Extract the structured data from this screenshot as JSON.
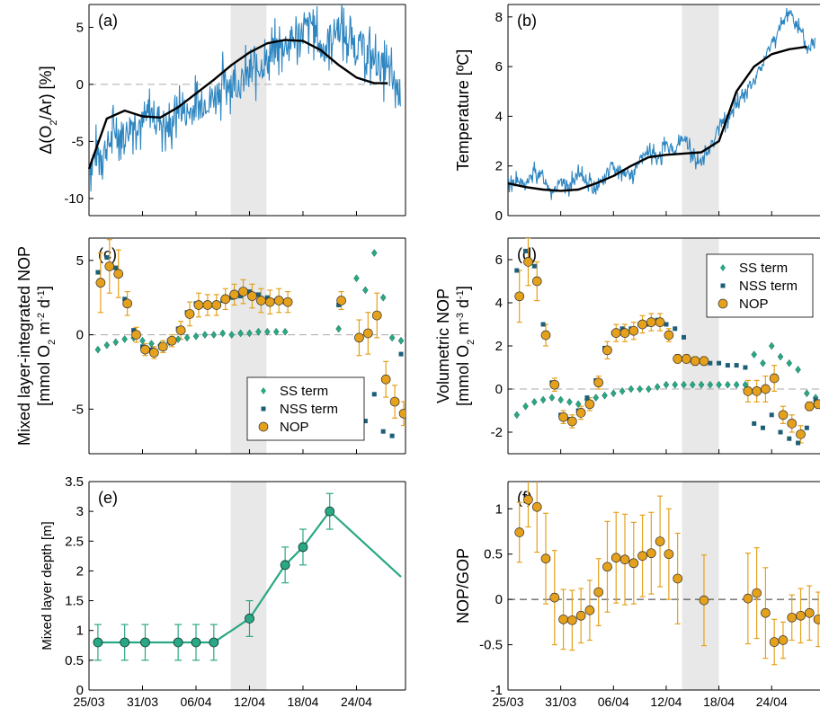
{
  "colors": {
    "blue": "#2e86c1",
    "orange": "#e5a11c",
    "green": "#2aa784",
    "darkteal": "#1d5f79",
    "shade": "#e8e8e8",
    "black": "#000000",
    "dash": "#aaaaaa"
  },
  "x_ticks": [
    "25/03",
    "31/03",
    "06/04",
    "12/04",
    "18/04",
    "24/04"
  ],
  "chart_data": [
    {
      "panel": "a",
      "label": "(a)",
      "type": "line",
      "ylabel_html": "Δ(O<tspan baseline-shift='sub' font-size='11'>2</tspan>/Ar) [%]",
      "ylim": [
        -11.5,
        7
      ],
      "yticks": [
        -10,
        -5,
        0,
        5
      ],
      "shade": [
        15.9,
        19.9
      ],
      "zero_line": true,
      "noisy_series": {
        "x": [
          0,
          1,
          2,
          3,
          4,
          5,
          6,
          7,
          8,
          9,
          10,
          11,
          12,
          13,
          14,
          15,
          16,
          17,
          18,
          19,
          20,
          21,
          22,
          23,
          24,
          25,
          26,
          27,
          28,
          29,
          30,
          31,
          32,
          33,
          34,
          35
        ],
        "y": [
          -7,
          -6,
          -5.5,
          -4,
          -4.5,
          -3,
          -3.5,
          -2.5,
          -3,
          -4,
          -2,
          -2.5,
          -2,
          -1.5,
          -1,
          0,
          0.5,
          0,
          1,
          1.5,
          2,
          3,
          3.5,
          4,
          4.5,
          5.5,
          3,
          4,
          5,
          4,
          3.5,
          3,
          2,
          1.5,
          0.5,
          -1
        ]
      },
      "smooth_series": {
        "x": [
          0,
          2,
          4,
          6,
          8,
          10,
          12,
          14,
          16,
          18,
          20,
          22,
          24,
          26,
          28,
          30,
          32,
          33.5
        ],
        "y": [
          -7.4,
          -3,
          -2.3,
          -2.8,
          -2.9,
          -2,
          -0.8,
          0.4,
          1.7,
          2.8,
          3.6,
          3.9,
          3.8,
          3.0,
          1.7,
          0.6,
          0.1,
          0.1
        ]
      }
    },
    {
      "panel": "b",
      "label": "(b)",
      "type": "line",
      "ylabel_html": "Temperature [ºC]",
      "ylim": [
        0,
        8.5
      ],
      "yticks": [
        0,
        2,
        4,
        6,
        8
      ],
      "shade": [
        19.8,
        24
      ],
      "zero_line": false,
      "noisy_series": {
        "x": [
          0,
          1,
          2,
          3,
          4,
          5,
          6,
          7,
          8,
          9,
          10,
          11,
          12,
          13,
          14,
          15,
          16,
          17,
          18,
          19,
          20,
          21,
          22,
          23,
          24,
          25,
          26,
          27,
          28,
          29,
          30,
          31,
          32,
          33,
          34,
          35
        ],
        "y": [
          1.3,
          1.4,
          1.2,
          1.8,
          1.5,
          1.0,
          1.3,
          1.2,
          1.6,
          1.4,
          1.2,
          1.5,
          2.0,
          1.8,
          1.6,
          2.2,
          2.6,
          2.3,
          2.8,
          2.6,
          3.2,
          2.4,
          2.1,
          2.8,
          3.6,
          3.9,
          4.5,
          5.0,
          5.4,
          6.1,
          7.0,
          7.5,
          8.3,
          7.6,
          6.7,
          6.9
        ]
      },
      "smooth_series": {
        "x": [
          0,
          2,
          4,
          6,
          8,
          10,
          12,
          14,
          16,
          18,
          20,
          22,
          24,
          26,
          28,
          30,
          32,
          34
        ],
        "y": [
          1.3,
          1.15,
          1.05,
          1.0,
          1.05,
          1.3,
          1.6,
          2.0,
          2.35,
          2.45,
          2.5,
          2.55,
          3.0,
          5.0,
          6.0,
          6.5,
          6.7,
          6.8
        ]
      }
    },
    {
      "panel": "c",
      "label": "(c)",
      "type": "scatter",
      "ylabel_line1": "Mixed layer-integrated NOP",
      "ylabel_line2_html": "[mmol O<tspan baseline-shift='sub' font-size='11'>2</tspan> m<tspan baseline-shift='super' font-size='11'>-2</tspan> d<tspan baseline-shift='super' font-size='11'>-1</tspan>]",
      "ylim": [
        -8,
        6.5
      ],
      "yticks": [
        -5,
        0,
        5
      ],
      "shade": [
        15.9,
        19.9
      ],
      "zero_line": true,
      "legend_pos": "bottom-right",
      "legend": [
        "SS term",
        "NSS term",
        "NOP"
      ],
      "ss": {
        "x": [
          1,
          2,
          3,
          4,
          5,
          6,
          7,
          8,
          9,
          10,
          11,
          12,
          13,
          14,
          15,
          16,
          17,
          18,
          19,
          20,
          21,
          22,
          28,
          30,
          31,
          32,
          33,
          34,
          35
        ],
        "y": [
          -1,
          -0.7,
          -0.5,
          -0.3,
          -0.2,
          -0.4,
          -0.6,
          -0.7,
          -0.5,
          -0.3,
          -0.2,
          -0.1,
          0,
          0,
          0.1,
          0,
          0.1,
          0.1,
          0.2,
          0.2,
          0.2,
          0.2,
          0.4,
          3.8,
          3.0,
          5.5,
          2.5,
          -0.2,
          -0.4
        ]
      },
      "nss": {
        "x": [
          1,
          2,
          3,
          4,
          5,
          6,
          7,
          8,
          9,
          10,
          11,
          12,
          13,
          14,
          15,
          16,
          17,
          18,
          19,
          20,
          21,
          22,
          28,
          30,
          31,
          32,
          33,
          34,
          35
        ],
        "y": [
          4.2,
          5.2,
          4.5,
          2.4,
          0.3,
          -0.8,
          -1.0,
          -0.8,
          -0.4,
          0.4,
          1.5,
          2.1,
          2.0,
          2.0,
          2.3,
          2.5,
          2.6,
          2.9,
          2.7,
          2.5,
          2.3,
          2.2,
          2.0,
          -4.6,
          -5.8,
          -4.0,
          -6.5,
          -6.8,
          -1.3
        ]
      },
      "nop": {
        "x": [
          1.3,
          2.3,
          3.3,
          4.3,
          5.3,
          6.3,
          7.3,
          8.3,
          9.3,
          10.3,
          11.3,
          12.3,
          13.3,
          14.3,
          15.3,
          16.3,
          17.3,
          18.3,
          19.3,
          20.3,
          21.3,
          22.3,
          28.3,
          30.3,
          31.3,
          32.3,
          33.3,
          34.3,
          35.3,
          36.3
        ],
        "y": [
          3.5,
          4.6,
          4.1,
          2.1,
          0,
          -1.0,
          -1.2,
          -0.8,
          -0.4,
          0.3,
          1.4,
          2.0,
          2.0,
          2.0,
          2.4,
          2.7,
          2.9,
          2.6,
          2.3,
          2.2,
          2.3,
          2.2,
          2.3,
          -0.2,
          0.1,
          1.3,
          -3.0,
          -4.5,
          -5.3,
          -1.5
        ],
        "err": [
          2.0,
          1.8,
          1.6,
          0.8,
          0.5,
          0.4,
          0.4,
          0.4,
          0.4,
          0.6,
          0.8,
          0.8,
          0.7,
          0.7,
          0.7,
          0.7,
          0.8,
          0.8,
          0.8,
          0.8,
          0.8,
          0.7,
          0.6,
          1.2,
          1.4,
          1.5,
          1.2,
          1.1,
          0.8,
          0.3
        ]
      }
    },
    {
      "panel": "d",
      "label": "(d)",
      "type": "scatter",
      "ylabel_line1": "Volumetric NOP",
      "ylabel_line2_html": "[mmol O<tspan baseline-shift='sub' font-size='11'>2</tspan> m<tspan baseline-shift='super' font-size='11'>-3</tspan> d<tspan baseline-shift='super' font-size='11'>-1</tspan>]",
      "ylim": [
        -3,
        7
      ],
      "yticks": [
        -2,
        0,
        2,
        4,
        6
      ],
      "shade": [
        19.8,
        24
      ],
      "zero_line": true,
      "legend_pos": "top-right",
      "legend": [
        "SS term",
        "NSS term",
        "NOP"
      ],
      "ss": {
        "x": [
          1,
          2,
          3,
          4,
          5,
          6,
          7,
          8,
          9,
          10,
          11,
          12,
          13,
          14,
          15,
          16,
          17,
          18,
          19,
          20,
          21,
          22,
          23,
          24,
          25,
          26,
          27,
          28,
          29,
          30,
          31,
          32,
          33,
          34,
          35
        ],
        "y": [
          -1.2,
          -0.8,
          -0.6,
          -0.5,
          -0.4,
          -0.5,
          -0.6,
          -0.7,
          -0.5,
          -0.4,
          -0.3,
          -0.2,
          -0.1,
          0,
          0,
          0,
          0.1,
          0.2,
          0.2,
          0.2,
          0.2,
          0.2,
          0.2,
          0.2,
          0.2,
          0.2,
          0.2,
          1.6,
          1.2,
          2.0,
          1.5,
          1.2,
          0.9,
          -0.2,
          -0.4
        ]
      },
      "nss": {
        "x": [
          1,
          2,
          3,
          4,
          5,
          6,
          7,
          8,
          9,
          10,
          11,
          12,
          13,
          14,
          15,
          16,
          17,
          18,
          19,
          20,
          21,
          22,
          23,
          24,
          25,
          26,
          27,
          28,
          29,
          30,
          31,
          32,
          33,
          34,
          35
        ],
        "y": [
          5.5,
          6.4,
          5.7,
          3.0,
          0.3,
          -1.2,
          -1.4,
          -1.0,
          -0.4,
          0.4,
          1.9,
          2.6,
          2.8,
          2.8,
          3.0,
          3.0,
          3.2,
          3.0,
          2.8,
          2.4,
          1.3,
          1.3,
          1.2,
          1.2,
          1.1,
          1.1,
          1.0,
          -1.6,
          -1.8,
          -1.2,
          -2.0,
          -2.3,
          -2.5,
          -1.8,
          -0.5
        ]
      },
      "nop": {
        "x": [
          1.3,
          2.3,
          3.3,
          4.3,
          5.3,
          6.3,
          7.3,
          8.3,
          9.3,
          10.3,
          11.3,
          12.3,
          13.3,
          14.3,
          15.3,
          16.3,
          17.3,
          18.3,
          19.3,
          20.3,
          21.3,
          22.3,
          27.3,
          28.3,
          29.3,
          30.3,
          31.3,
          32.3,
          33.3,
          34.3,
          35.3,
          36.3
        ],
        "y": [
          4.3,
          5.9,
          5.0,
          2.5,
          0.2,
          -1.3,
          -1.5,
          -1.1,
          -0.7,
          0.3,
          1.8,
          2.6,
          2.6,
          2.7,
          3.0,
          3.1,
          3.1,
          2.5,
          1.4,
          1.4,
          1.3,
          1.3,
          -0.1,
          -0.1,
          0,
          0.5,
          -1.2,
          -1.6,
          -2.1,
          -0.8,
          -0.7,
          -0.7
        ],
        "err": [
          1.2,
          1.1,
          0.9,
          0.5,
          0.3,
          0.3,
          0.3,
          0.3,
          0.3,
          0.3,
          0.4,
          0.4,
          0.4,
          0.4,
          0.4,
          0.4,
          0.4,
          0.3,
          0.2,
          0.2,
          0.2,
          0.2,
          0.5,
          0.5,
          0.6,
          0.6,
          0.4,
          0.4,
          0.4,
          0.2,
          0.2,
          0.2
        ]
      }
    },
    {
      "panel": "e",
      "label": "(e)",
      "type": "line",
      "ylabel_html": "Mixed layer depth [m]",
      "ylim": [
        0,
        3.5
      ],
      "yticks": [
        0,
        0.5,
        1,
        1.5,
        2,
        2.5,
        3,
        3.5
      ],
      "shade": [
        15.9,
        19.9
      ],
      "points": {
        "x": [
          1,
          4,
          6.3,
          10,
          12,
          14,
          18,
          22,
          24,
          27
        ],
        "y": [
          0.8,
          0.8,
          0.8,
          0.8,
          0.8,
          0.8,
          1.2,
          2.1,
          2.4,
          3.0
        ],
        "err": [
          0.3,
          0.3,
          0.3,
          0.3,
          0.3,
          0.3,
          0.3,
          0.3,
          0.3,
          0.3
        ]
      },
      "line_to": {
        "x": 35,
        "y": 1.9
      }
    },
    {
      "panel": "f",
      "label": "(f)",
      "type": "scatter",
      "ylabel_html": "NOP/GOP",
      "ylim": [
        -1,
        1.3
      ],
      "yticks": [
        -1,
        -0.5,
        0,
        0.5,
        1
      ],
      "shade": [
        19.8,
        24
      ],
      "zero_line": true,
      "nop": {
        "x": [
          1.3,
          2.3,
          3.3,
          4.3,
          5.3,
          6.3,
          7.3,
          8.3,
          9.3,
          10.3,
          11.3,
          12.3,
          13.3,
          14.3,
          15.3,
          16.3,
          17.3,
          18.3,
          19.3,
          22.3,
          27.3,
          28.3,
          29.3,
          30.3,
          31.3,
          32.3,
          33.3,
          34.3,
          35.3
        ],
        "y": [
          0.74,
          1.1,
          1.02,
          0.45,
          0.02,
          -0.22,
          -0.23,
          -0.18,
          -0.12,
          0.08,
          0.36,
          0.46,
          0.44,
          0.4,
          0.48,
          0.51,
          0.64,
          0.5,
          0.23,
          -0.01,
          0.01,
          0.07,
          -0.15,
          -0.47,
          -0.45,
          -0.2,
          -0.18,
          -0.15,
          -0.22
        ],
        "err": [
          0.33,
          0.3,
          0.5,
          0.5,
          0.52,
          0.33,
          0.33,
          0.3,
          0.33,
          0.37,
          0.5,
          0.5,
          0.5,
          0.45,
          0.45,
          0.45,
          0.5,
          0.5,
          0.5,
          0.5,
          0.5,
          0.5,
          0.5,
          0.25,
          0.2,
          0.25,
          0.3,
          0.3,
          0.3
        ]
      }
    }
  ]
}
